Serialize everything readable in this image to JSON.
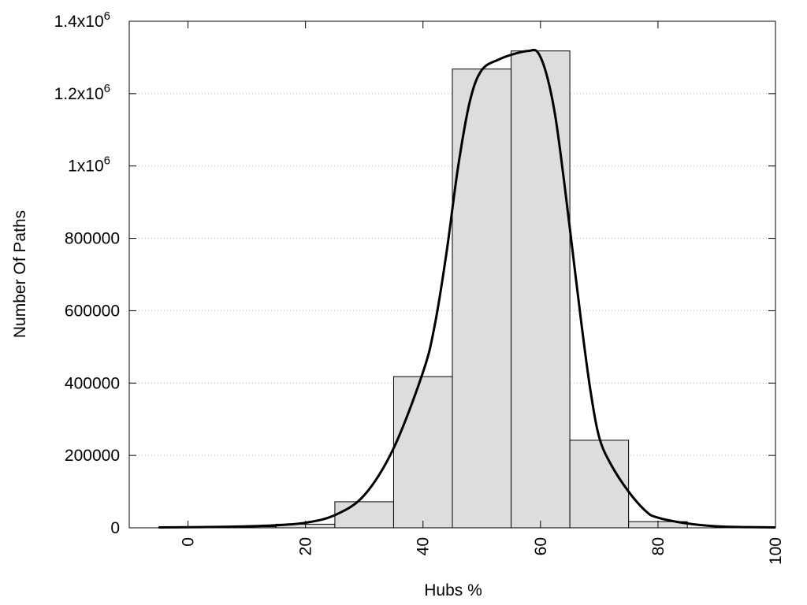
{
  "chart_data": {
    "type": "bar",
    "title": "",
    "xlabel": "Hubs %",
    "ylabel": "Number Of Paths",
    "xlim": [
      -10,
      100
    ],
    "ylim": [
      0,
      1400000
    ],
    "grid": "horizontal-dotted",
    "x_ticks": [
      0,
      20,
      40,
      60,
      80,
      100
    ],
    "y_ticks": [
      {
        "value": 0,
        "label": "0"
      },
      {
        "value": 200000,
        "label": "200000"
      },
      {
        "value": 400000,
        "label": "400000"
      },
      {
        "value": 600000,
        "label": "600000"
      },
      {
        "value": 800000,
        "label": "800000"
      },
      {
        "value": 1000000,
        "label": "1x10",
        "sup": "6"
      },
      {
        "value": 1200000,
        "label": "1.2x10",
        "sup": "6"
      },
      {
        "value": 1400000,
        "label": "1.4x10",
        "sup": "6"
      }
    ],
    "bin_width": 10,
    "bins": [
      {
        "center": 0,
        "value": 2000
      },
      {
        "center": 10,
        "value": 3000
      },
      {
        "center": 20,
        "value": 10000
      },
      {
        "center": 30,
        "value": 72000
      },
      {
        "center": 40,
        "value": 418000
      },
      {
        "center": 50,
        "value": 1268000
      },
      {
        "center": 60,
        "value": 1318000
      },
      {
        "center": 70,
        "value": 242000
      },
      {
        "center": 80,
        "value": 17000
      }
    ],
    "curve": [
      [
        -5,
        1000
      ],
      [
        0,
        1500
      ],
      [
        5,
        2500
      ],
      [
        10,
        4000
      ],
      [
        15,
        7000
      ],
      [
        20,
        14000
      ],
      [
        25,
        35000
      ],
      [
        30,
        90000
      ],
      [
        35,
        220000
      ],
      [
        40,
        430000
      ],
      [
        42,
        560000
      ],
      [
        44,
        760000
      ],
      [
        46,
        1000000
      ],
      [
        48,
        1180000
      ],
      [
        50,
        1265000
      ],
      [
        53,
        1295000
      ],
      [
        56,
        1312000
      ],
      [
        58,
        1318000
      ],
      [
        59.5,
        1315000
      ],
      [
        61,
        1255000
      ],
      [
        62.5,
        1140000
      ],
      [
        64,
        960000
      ],
      [
        65.5,
        760000
      ],
      [
        67,
        560000
      ],
      [
        68.5,
        380000
      ],
      [
        70,
        250000
      ],
      [
        72,
        175000
      ],
      [
        75,
        100000
      ],
      [
        78,
        45000
      ],
      [
        80,
        28000
      ],
      [
        85,
        12000
      ],
      [
        90,
        4000
      ],
      [
        95,
        2000
      ],
      [
        100,
        1000
      ]
    ],
    "colors": {
      "bar_fill": "#dddddd",
      "bar_stroke": "#000000",
      "curve": "#000000",
      "grid": "#bbbbbb"
    }
  }
}
